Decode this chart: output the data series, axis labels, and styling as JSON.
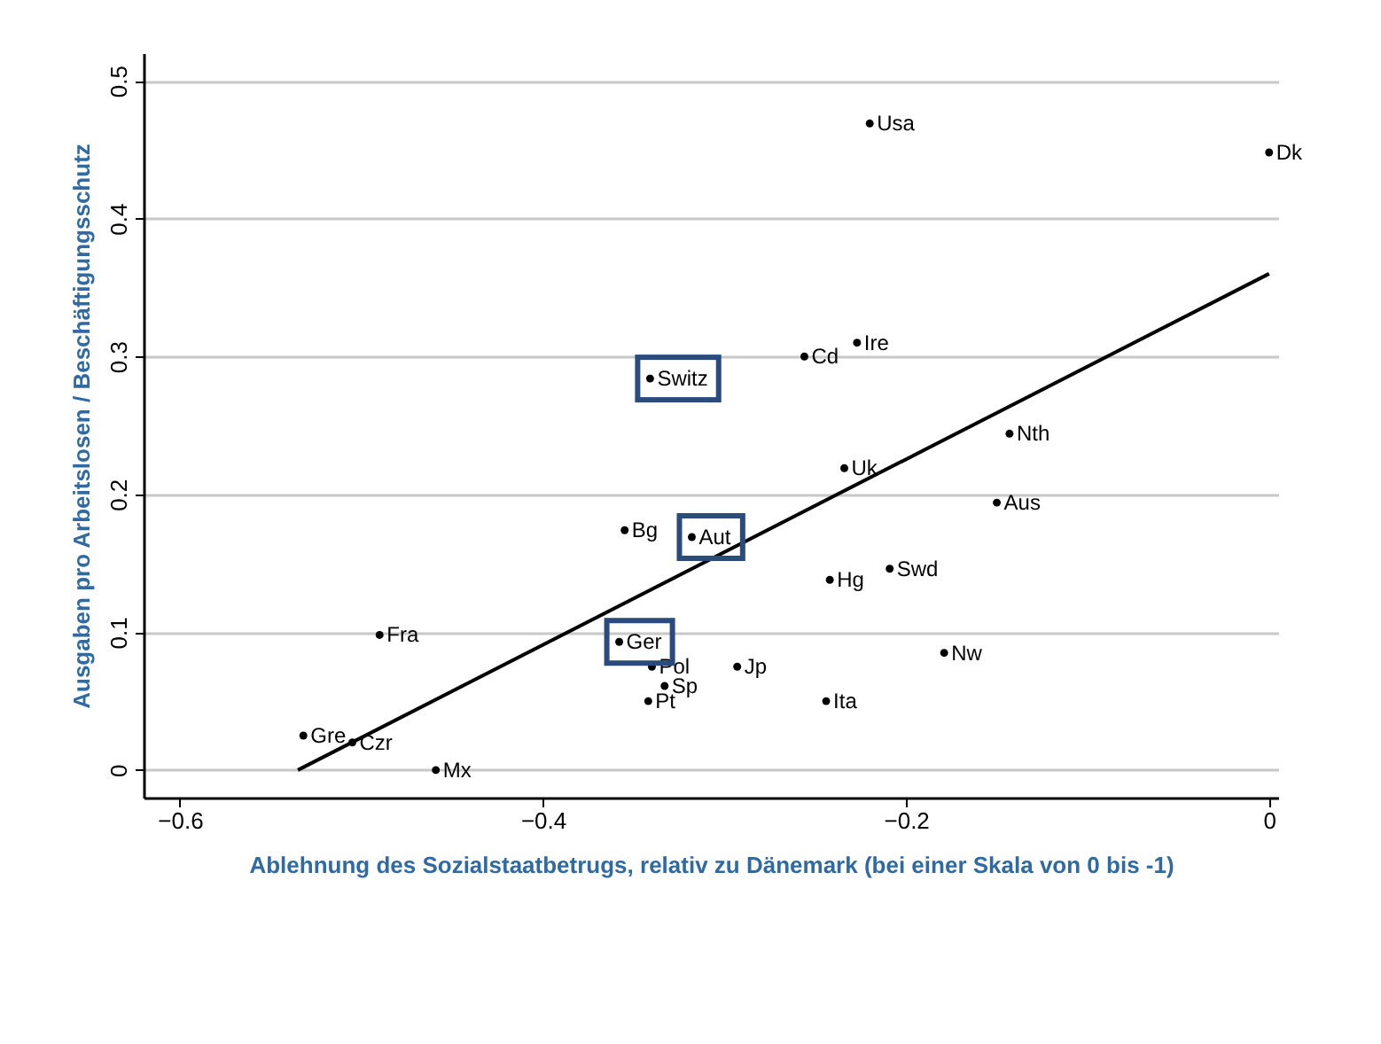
{
  "chart_data": {
    "type": "scatter",
    "xlabel": "Ablehnung des Sozialstaatbetrugs, relativ zu Dänemark (bei einer Skala von 0 bis -1)",
    "ylabel": "Ausgaben pro Arbeitslosen / Beschäftigungsschutz",
    "xlim": [
      -0.62,
      0.005
    ],
    "xticks": [
      -0.6,
      -0.4,
      -0.2,
      0
    ],
    "ylim": [
      -0.02,
      0.52
    ],
    "yticks": [
      0,
      0.1,
      0.2,
      0.3,
      0.4,
      0.5
    ],
    "grid": "y",
    "series": [
      {
        "marker": "circle",
        "color": "#000000",
        "x": [
          -0.22,
          0,
          -0.341,
          -0.256,
          -0.227,
          -0.143,
          -0.234,
          -0.15,
          -0.355,
          -0.318,
          -0.242,
          -0.209,
          -0.49,
          -0.358,
          -0.34,
          -0.333,
          -0.342,
          -0.293,
          -0.244,
          -0.179,
          -0.532,
          -0.505,
          -0.459
        ],
        "values": [
          0.469,
          0.448,
          0.284,
          0.3,
          0.31,
          0.244,
          0.219,
          0.194,
          0.174,
          0.169,
          0.138,
          0.146,
          0.098,
          0.093,
          0.075,
          0.061,
          0.05,
          0.075,
          0.05,
          0.085,
          0.025,
          0.02,
          0.0
        ]
      },
      {
        "type": "line",
        "color": "#000000",
        "x": [
          -0.535,
          0
        ],
        "values": [
          0,
          0.36
        ]
      }
    ],
    "annotations": [
      {
        "text": "Usa",
        "x": -0.22,
        "y": 0.469
      },
      {
        "text": "Dk",
        "x": 0,
        "y": 0.448
      },
      {
        "text": "Switz",
        "x": -0.341,
        "y": 0.284
      },
      {
        "text": "Cd",
        "x": -0.256,
        "y": 0.3
      },
      {
        "text": "Ire",
        "x": -0.227,
        "y": 0.31
      },
      {
        "text": "Nth",
        "x": -0.143,
        "y": 0.244
      },
      {
        "text": "Uk",
        "x": -0.234,
        "y": 0.219
      },
      {
        "text": "Aus",
        "x": -0.15,
        "y": 0.194
      },
      {
        "text": "Bg",
        "x": -0.355,
        "y": 0.174
      },
      {
        "text": "Aut",
        "x": -0.318,
        "y": 0.169
      },
      {
        "text": "Hg",
        "x": -0.242,
        "y": 0.138
      },
      {
        "text": "Swd",
        "x": -0.209,
        "y": 0.146
      },
      {
        "text": "Fra",
        "x": -0.49,
        "y": 0.098
      },
      {
        "text": "Ger",
        "x": -0.358,
        "y": 0.093
      },
      {
        "text": "Pol",
        "x": -0.34,
        "y": 0.075
      },
      {
        "text": "Sp",
        "x": -0.333,
        "y": 0.061
      },
      {
        "text": "Pt",
        "x": -0.342,
        "y": 0.05
      },
      {
        "text": "Jp",
        "x": -0.293,
        "y": 0.075
      },
      {
        "text": "Ita",
        "x": -0.244,
        "y": 0.05
      },
      {
        "text": "Nw",
        "x": -0.179,
        "y": 0.085
      },
      {
        "text": "Gre",
        "x": -0.532,
        "y": 0.025
      },
      {
        "text": "Czr",
        "x": -0.505,
        "y": 0.02
      },
      {
        "text": "Mx",
        "x": -0.459,
        "y": 0.0
      }
    ]
  }
}
